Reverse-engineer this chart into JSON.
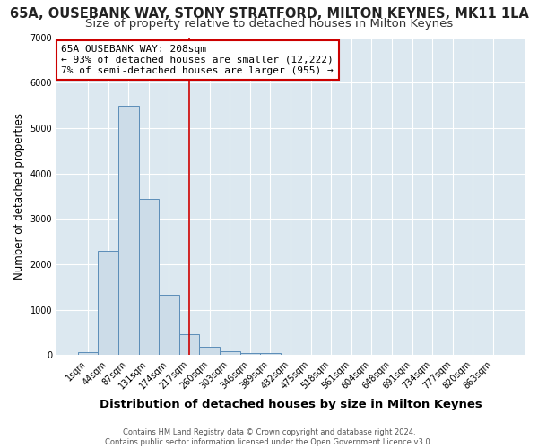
{
  "title": "65A, OUSEBANK WAY, STONY STRATFORD, MILTON KEYNES, MK11 1LA",
  "subtitle": "Size of property relative to detached houses in Milton Keynes",
  "xlabel": "Distribution of detached houses by size in Milton Keynes",
  "ylabel": "Number of detached properties",
  "footer_line1": "Contains HM Land Registry data © Crown copyright and database right 2024.",
  "footer_line2": "Contains public sector information licensed under the Open Government Licence v3.0.",
  "bar_labels": [
    "1sqm",
    "44sqm",
    "87sqm",
    "131sqm",
    "174sqm",
    "217sqm",
    "260sqm",
    "303sqm",
    "346sqm",
    "389sqm",
    "432sqm",
    "475sqm",
    "518sqm",
    "561sqm",
    "604sqm",
    "648sqm",
    "691sqm",
    "734sqm",
    "777sqm",
    "820sqm",
    "863sqm"
  ],
  "bar_values": [
    75,
    2290,
    5500,
    3430,
    1330,
    460,
    185,
    90,
    55,
    45,
    0,
    0,
    0,
    0,
    0,
    0,
    0,
    0,
    0,
    0,
    0
  ],
  "bar_color": "#ccdce8",
  "bar_edge_color": "#5b8db8",
  "vline_x": 5.0,
  "vline_color": "#cc0000",
  "ylim": [
    0,
    7000
  ],
  "annotation_text": "65A OUSEBANK WAY: 208sqm\n← 93% of detached houses are smaller (12,222)\n7% of semi-detached houses are larger (955) →",
  "annotation_box_color": "white",
  "annotation_box_edge": "#cc0000",
  "bg_color": "#ffffff",
  "plot_bg_color": "#dce8f0",
  "grid_color": "#ffffff",
  "title_fontsize": 10.5,
  "subtitle_fontsize": 9.5,
  "xlabel_fontsize": 9.5,
  "ylabel_fontsize": 8.5
}
